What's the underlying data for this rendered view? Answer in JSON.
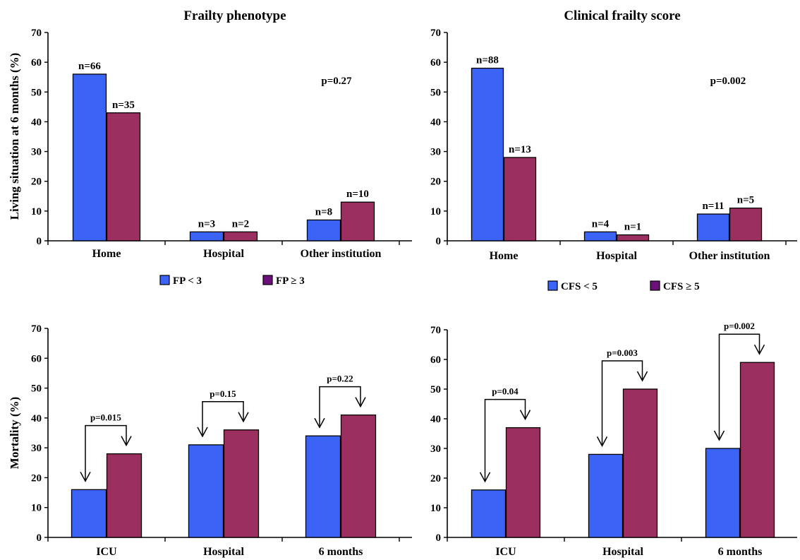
{
  "colors": {
    "series_a": "#3b64f6",
    "series_b": "#9b2f5f",
    "legend_b_swatch": "#6b0f7a",
    "axis": "#000000"
  },
  "chart_data": [
    {
      "type": "bar",
      "title": "Frailty phenotype",
      "ylabel": "Living situation at 6 months (%)",
      "xlabel": "",
      "ylim": [
        0,
        70
      ],
      "yticks": [
        "0",
        "10",
        "20",
        "30",
        "40",
        "50",
        "60",
        "70"
      ],
      "categories": [
        "Home",
        "Hospital",
        "Other institution"
      ],
      "series": [
        {
          "name": "FP < 3",
          "values": [
            56,
            3,
            7
          ],
          "labels": [
            "n=66",
            "n=3",
            "n=8"
          ]
        },
        {
          "name": "FP ≥ 3",
          "values": [
            43,
            3,
            13
          ],
          "labels": [
            "n=35",
            "n=2",
            "n=10"
          ]
        }
      ],
      "annotations": [
        {
          "text": "p=0.27",
          "y": 56
        }
      ],
      "legend": "bottom"
    },
    {
      "type": "bar",
      "title": "Clinical frailty score",
      "ylabel": "",
      "xlabel": "",
      "ylim": [
        0,
        70
      ],
      "yticks": [
        "0",
        "10",
        "20",
        "30",
        "40",
        "50",
        "60",
        "70"
      ],
      "categories": [
        "Home",
        "Hospital",
        "Other institution"
      ],
      "series": [
        {
          "name": "CFS < 5",
          "values": [
            58,
            3,
            9
          ],
          "labels": [
            "n=88",
            "n=4",
            "n=11"
          ]
        },
        {
          "name": "CFS ≥ 5",
          "values": [
            28,
            2,
            11
          ],
          "labels": [
            "n=13",
            "n=1",
            "n=5"
          ]
        }
      ],
      "annotations": [
        {
          "text": "p=0.002",
          "y": 56
        }
      ],
      "legend": "bottom"
    },
    {
      "type": "bar",
      "title": "",
      "ylabel": "Mortality (%)",
      "xlabel": "",
      "ylim": [
        0,
        70
      ],
      "yticks": [
        "0",
        "10",
        "20",
        "30",
        "40",
        "50",
        "60",
        "70"
      ],
      "categories": [
        "ICU",
        "Hospital",
        "6 months"
      ],
      "series": [
        {
          "name": "FP < 3",
          "values": [
            16,
            31,
            34
          ]
        },
        {
          "name": "FP ≥ 3",
          "values": [
            28,
            36,
            41
          ]
        }
      ],
      "comparisons": [
        "p=0.015",
        "p=0.15",
        "p=0.22"
      ]
    },
    {
      "type": "bar",
      "title": "",
      "ylabel": "",
      "xlabel": "",
      "ylim": [
        0,
        70
      ],
      "yticks": [
        "0",
        "10",
        "20",
        "30",
        "40",
        "50",
        "60",
        "70"
      ],
      "categories": [
        "ICU",
        "Hospital",
        "6 months"
      ],
      "series": [
        {
          "name": "CFS < 5",
          "values": [
            16,
            28,
            30
          ]
        },
        {
          "name": "CFS ≥ 5",
          "values": [
            37,
            50,
            59
          ]
        }
      ],
      "comparisons": [
        "p=0.04",
        "p=0.003",
        "p=0.002"
      ]
    }
  ]
}
